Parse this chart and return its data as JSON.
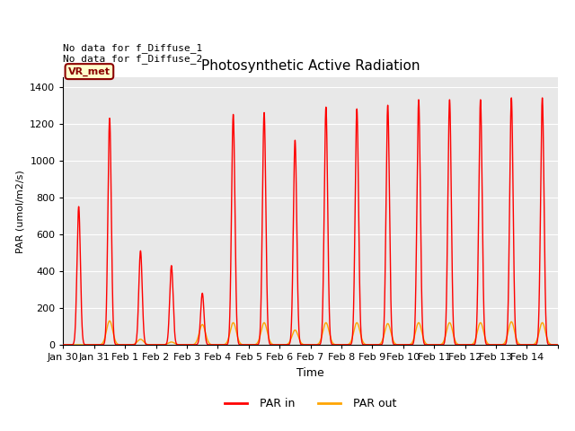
{
  "title": "Photosynthetic Active Radiation",
  "ylabel": "PAR (umol/m2/s)",
  "xlabel": "Time",
  "annotation_text": "No data for f_Diffuse_1\nNo data for f_Diffuse_2",
  "vr_met_label": "VR_met",
  "ylim": [
    0,
    1450
  ],
  "background_color": "#ffffff",
  "plot_bg_color": "#e8e8e8",
  "grid_color": "#ffffff",
  "par_in_color": "#ff0000",
  "par_out_color": "#ffa500",
  "x_tick_labels": [
    "Jan 30",
    "Jan 31",
    "Feb 1",
    "Feb 2",
    "Feb 3",
    "Feb 4",
    "Feb 5",
    "Feb 6",
    "Feb 7",
    "Feb 8",
    "Feb 9",
    "Feb 10",
    "Feb 11",
    "Feb 12",
    "Feb 13",
    "Feb 14"
  ],
  "day_peaks_in": [
    750,
    1230,
    510,
    430,
    280,
    1250,
    1260,
    1110,
    1290,
    1280,
    1300,
    1330,
    1330,
    1330,
    1340,
    1340
  ],
  "day_peaks_out": [
    0,
    130,
    30,
    15,
    110,
    120,
    120,
    80,
    120,
    120,
    115,
    120,
    120,
    120,
    125,
    120
  ],
  "par_in_sigma": 0.055,
  "par_out_sigma_factor": 1.8,
  "figsize": [
    6.4,
    4.8
  ],
  "dpi": 100
}
